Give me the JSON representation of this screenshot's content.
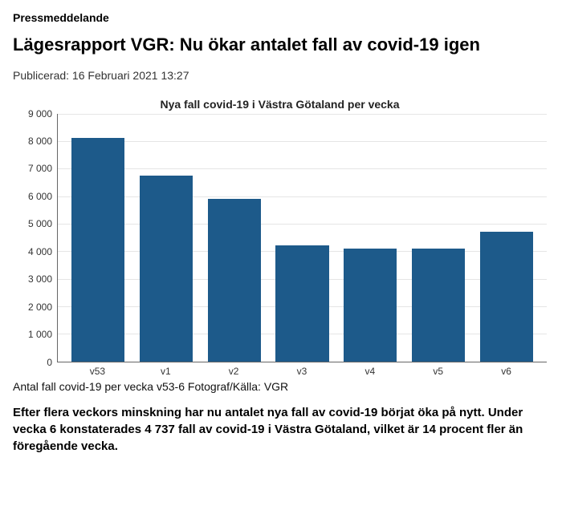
{
  "kicker": "Pressmeddelande",
  "headline": "Lägesrapport VGR: Nu ökar antalet fall av covid-19 igen",
  "published_label": "Publicerad: 16 Februari 2021 13:27",
  "chart": {
    "type": "bar",
    "title": "Nya fall covid-19 i Västra Götaland per vecka",
    "categories": [
      "v53",
      "v1",
      "v2",
      "v3",
      "v4",
      "v5",
      "v6"
    ],
    "values": [
      8100,
      6750,
      5900,
      4200,
      4100,
      4100,
      4700
    ],
    "bar_color": "#1d5a8a",
    "background_color": "#ffffff",
    "grid_color": "#e5e5e5",
    "axis_color": "#666666",
    "ylim": [
      0,
      9000
    ],
    "ytick_step": 1000,
    "ytick_labels": [
      "0",
      "1 000",
      "2 000",
      "3 000",
      "4 000",
      "5 000",
      "6 000",
      "7 000",
      "8 000",
      "9 000"
    ],
    "label_fontsize": 12,
    "title_fontsize": 14,
    "bar_width_ratio": 0.78
  },
  "caption": "Antal fall covid-19 per vecka v53-6 Fotograf/Källa: VGR",
  "lead": "Efter flera veckors minskning har nu antalet nya fall av covid-19 börjat öka på nytt. Under vecka 6 konstaterades 4 737 fall av covid-19 i Västra Götaland, vilket är 14 procent fler än föregående vecka."
}
